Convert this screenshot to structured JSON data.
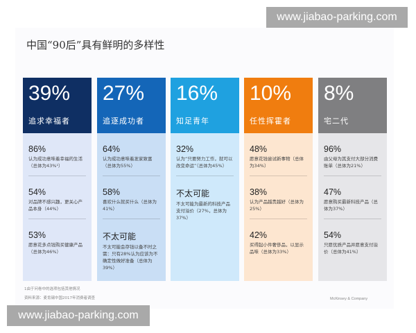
{
  "title": "中国“90后”具有鲜明的多样性",
  "columns": [
    {
      "pct": "39%",
      "name": "追求幸福者",
      "head_color": "#0f2f63",
      "body_color": "#dfe7f8",
      "items": [
        {
          "pct": "86%",
          "text": "认为成功意味着幸福的生活（总体为43%¹）"
        },
        {
          "pct": "54%",
          "text": "对品牌不感兴趣，更关心产品本身（44%）"
        },
        {
          "pct": "53%",
          "text": "愿意花多点钱购买健康产品（总体为46%）"
        }
      ]
    },
    {
      "pct": "27%",
      "name": "追逐成功者",
      "head_color": "#1466b8",
      "body_color": "#c9def5",
      "items": [
        {
          "pct": "64%",
          "text": "认为成功意味着发家致富（总体为55%）"
        },
        {
          "pct": "58%",
          "text": "喜欢什么就买什么（总体为41%）"
        },
        {
          "pct": "不太可能",
          "text": "不太可能会存钱以备不时之需：只有28%认为应该为不确定性做好准备（总体为39%）"
        }
      ]
    },
    {
      "pct": "16%",
      "name": "知足青年",
      "head_color": "#1fa1e0",
      "body_color": "#cfe9fb",
      "items": [
        {
          "pct": "32%",
          "text": "认为“只要努力工作，就可以改变命运”（总体为45%）"
        },
        {
          "pct": "不太可能",
          "text": "不太可能为最新的科技产品支付溢价（27%，总体为37%）"
        }
      ]
    },
    {
      "pct": "10%",
      "name": "任性挥霍者",
      "head_color": "#f07d0f",
      "body_color": "#fde6d0",
      "items": [
        {
          "pct": "48%",
          "text": "愿意花钱尝试新事物（总体为34%）"
        },
        {
          "pct": "38%",
          "text": "认为产品越贵越好（总体为25%）"
        },
        {
          "pct": "42%",
          "text": "买得起小件奢侈品，以显示品味（总体为33%）"
        }
      ]
    },
    {
      "pct": "8%",
      "name": "宅二代",
      "head_color": "#7f7f81",
      "body_color": "#e6e6e9",
      "items": [
        {
          "pct": "96%",
          "text": "由父母为其支付大部分消费账单（总体为21%）"
        },
        {
          "pct": "47%",
          "text": "愿意购买最新科技产品（总体为37%）"
        },
        {
          "pct": "54%",
          "text": "只愿优质产品并愿意支付溢价（总体为41%）"
        }
      ]
    }
  ],
  "footnotes": [
    "1由于问卷中的选项包括其他情况",
    "资料来源：麦肯锡中国2017年消费者调查"
  ],
  "credit": "McKinsey & Company",
  "watermark": "www.jiabao-parking.com"
}
